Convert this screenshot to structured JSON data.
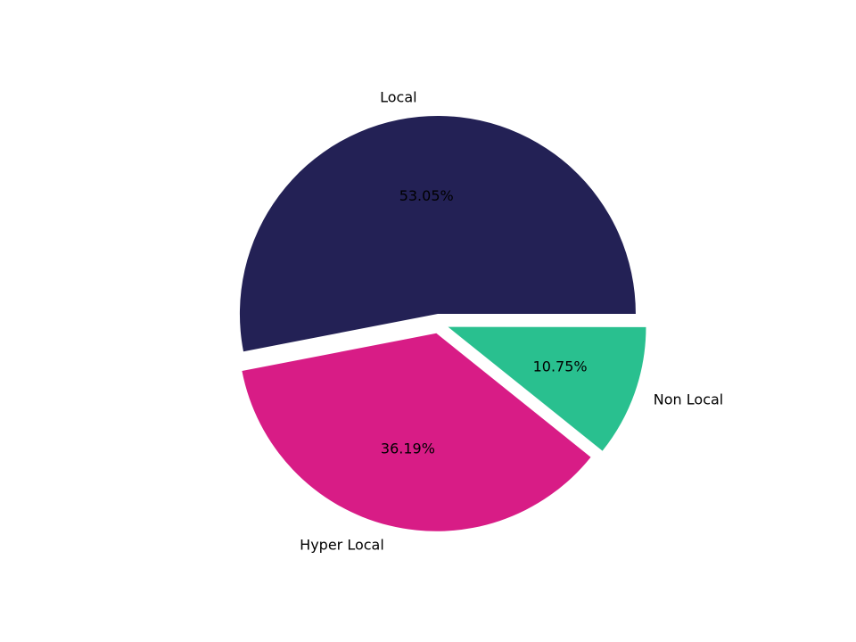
{
  "figure": {
    "background": "#ffffff"
  },
  "chart_data": {
    "type": "pie",
    "labels": [
      "Local",
      "Hyper Local",
      "Non Local"
    ],
    "values": [
      53.05,
      36.19,
      10.75
    ],
    "pct_labels": [
      "53.05%",
      "36.19%",
      "10.75%"
    ],
    "colors": [
      "#232155",
      "#d81c86",
      "#29c08f"
    ],
    "text_color": "#000000",
    "start_angle_deg": 0,
    "direction": "counterclockwise",
    "explode": [
      0.05,
      0.05,
      0.05
    ],
    "label_distance": 1.1,
    "pct_distance": 0.6,
    "title": "",
    "legend": "none"
  }
}
